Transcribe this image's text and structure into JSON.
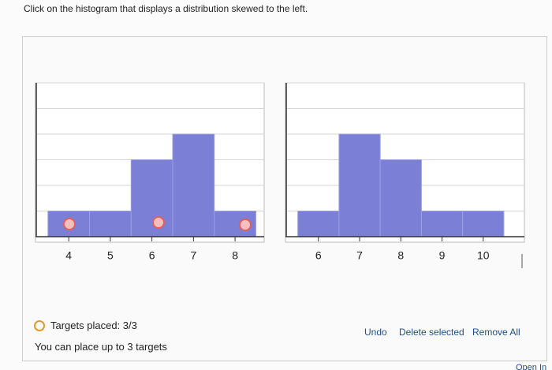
{
  "instruction": "Click on the histogram that displays a distribution skewed to the left.",
  "histograms": [
    {
      "bins": [
        3.5,
        4.5,
        5.5,
        6.5,
        7.5,
        8.5
      ],
      "counts": [
        1,
        1,
        3,
        4,
        1
      ],
      "xlim": [
        3.2,
        8.7
      ],
      "xticks": [
        4,
        5,
        6,
        7,
        8
      ],
      "ylim": [
        0,
        6
      ],
      "yticks": [
        1,
        2,
        3,
        4,
        5,
        6
      ],
      "color": "#7b7fd6"
    },
    {
      "bins": [
        5.5,
        6.5,
        7.5,
        8.5,
        9.5,
        10.5
      ],
      "counts": [
        1,
        4,
        3,
        1,
        1
      ],
      "xlim": [
        5.2,
        11
      ],
      "xticks": [
        6,
        7,
        8,
        9,
        10
      ],
      "ylim": [
        0,
        6
      ],
      "yticks": [
        1,
        2,
        3,
        4,
        5,
        6
      ],
      "color": "#7b7fd6"
    }
  ],
  "status": {
    "targets": "Targets placed: 3/3",
    "limit": "You can place up to 3 targets"
  },
  "buttons": [
    "Undo",
    "Delete selected",
    "Remove All"
  ],
  "footer_link": "Open In"
}
